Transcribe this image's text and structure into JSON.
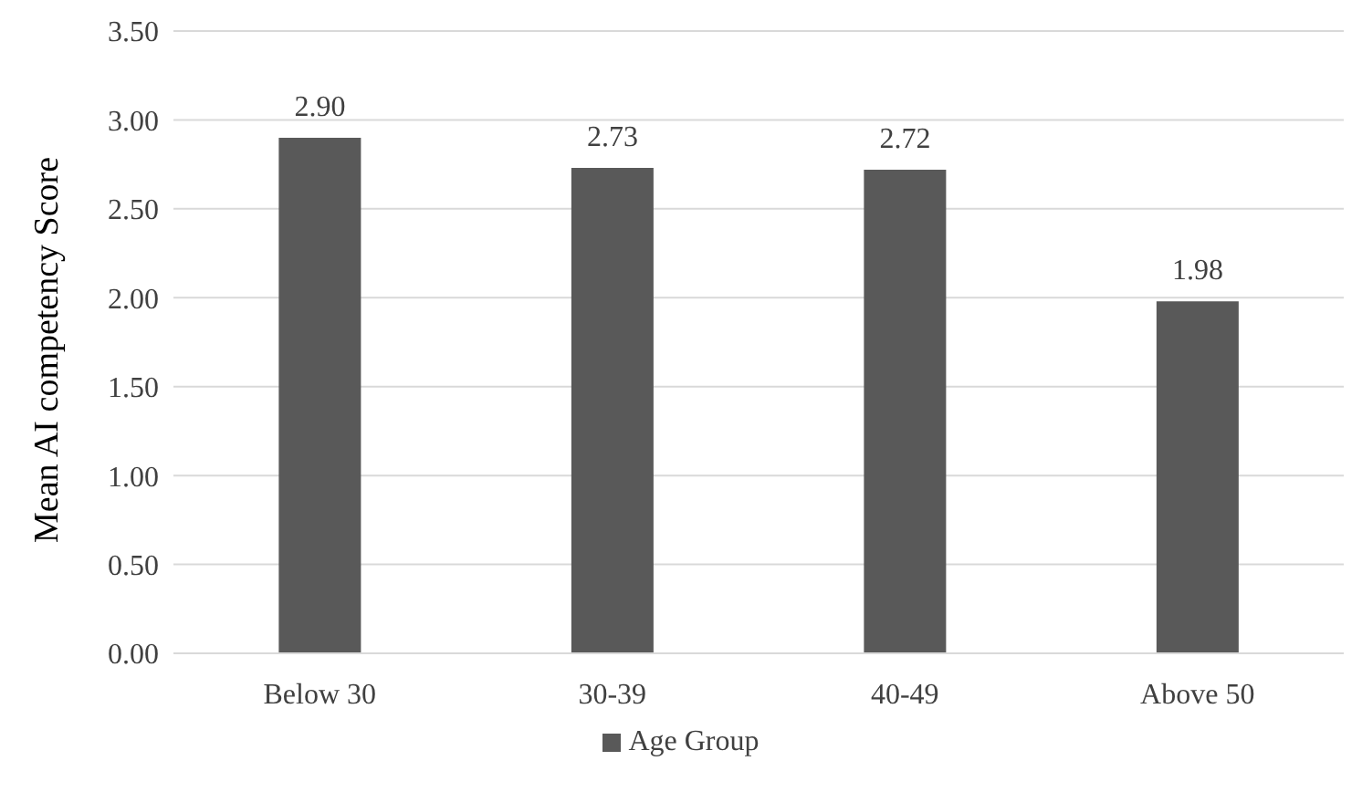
{
  "chart_data": {
    "type": "bar",
    "ylabel": "Mean AI competency Score",
    "categories": [
      "Below 30",
      "30-39",
      "40-49",
      "Above 50"
    ],
    "series": [
      {
        "name": "Age Group",
        "color": "#595959",
        "values": [
          2.9,
          2.73,
          2.72,
          1.98
        ],
        "value_labels": [
          "2.90",
          "2.73",
          "2.72",
          "1.98"
        ]
      }
    ],
    "ylim": [
      0,
      3.5
    ],
    "yticks": [
      {
        "value": 0,
        "label": "0.00"
      },
      {
        "value": 0.5,
        "label": "0.50"
      },
      {
        "value": 1,
        "label": "1.00"
      },
      {
        "value": 1.5,
        "label": "1.50"
      },
      {
        "value": 2,
        "label": "2.00"
      },
      {
        "value": 2.5,
        "label": "2.50"
      },
      {
        "value": 3,
        "label": "3.00"
      },
      {
        "value": 3.5,
        "label": "3.50"
      }
    ],
    "grid": "y",
    "legend": "bottom"
  }
}
